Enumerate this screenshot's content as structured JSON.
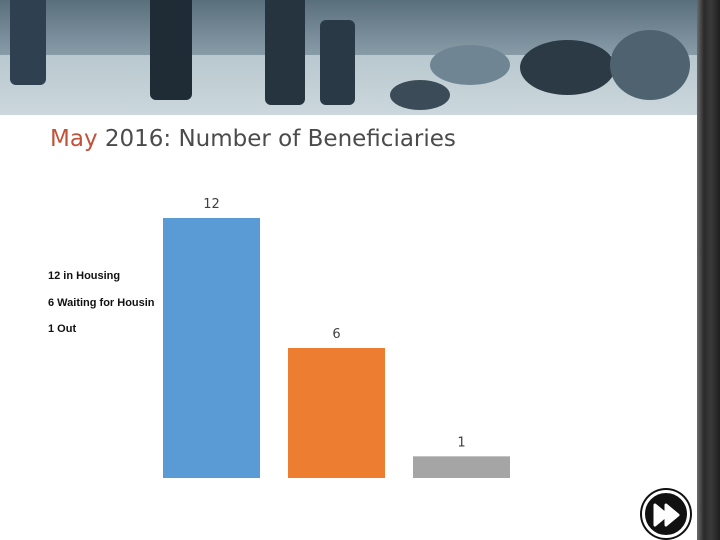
{
  "slide": {
    "title_month": "May",
    "title_rest": " 2016: Number of Beneficiaries"
  },
  "legend": [
    "12 in Housing",
    "6 Waiting for Housin",
    "1 Out"
  ],
  "colors": {
    "title_month": "#c0533a",
    "series": [
      "#5b9bd5",
      "#ed7d31",
      "#a5a5a5"
    ],
    "data_labels": "#404040"
  },
  "icons": {
    "next": "fast-forward-icon"
  },
  "chart_data": {
    "type": "bar",
    "categories": [
      "12 in Housing",
      "6 Waiting for Housin",
      "1 Out"
    ],
    "values": [
      12,
      6,
      1
    ],
    "data_labels": [
      "12",
      "6",
      "1"
    ],
    "title": "May 2016: Number of Beneficiaries",
    "xlabel": "",
    "ylabel": "",
    "ylim": [
      0,
      12
    ],
    "grid": false,
    "legend": "left"
  }
}
